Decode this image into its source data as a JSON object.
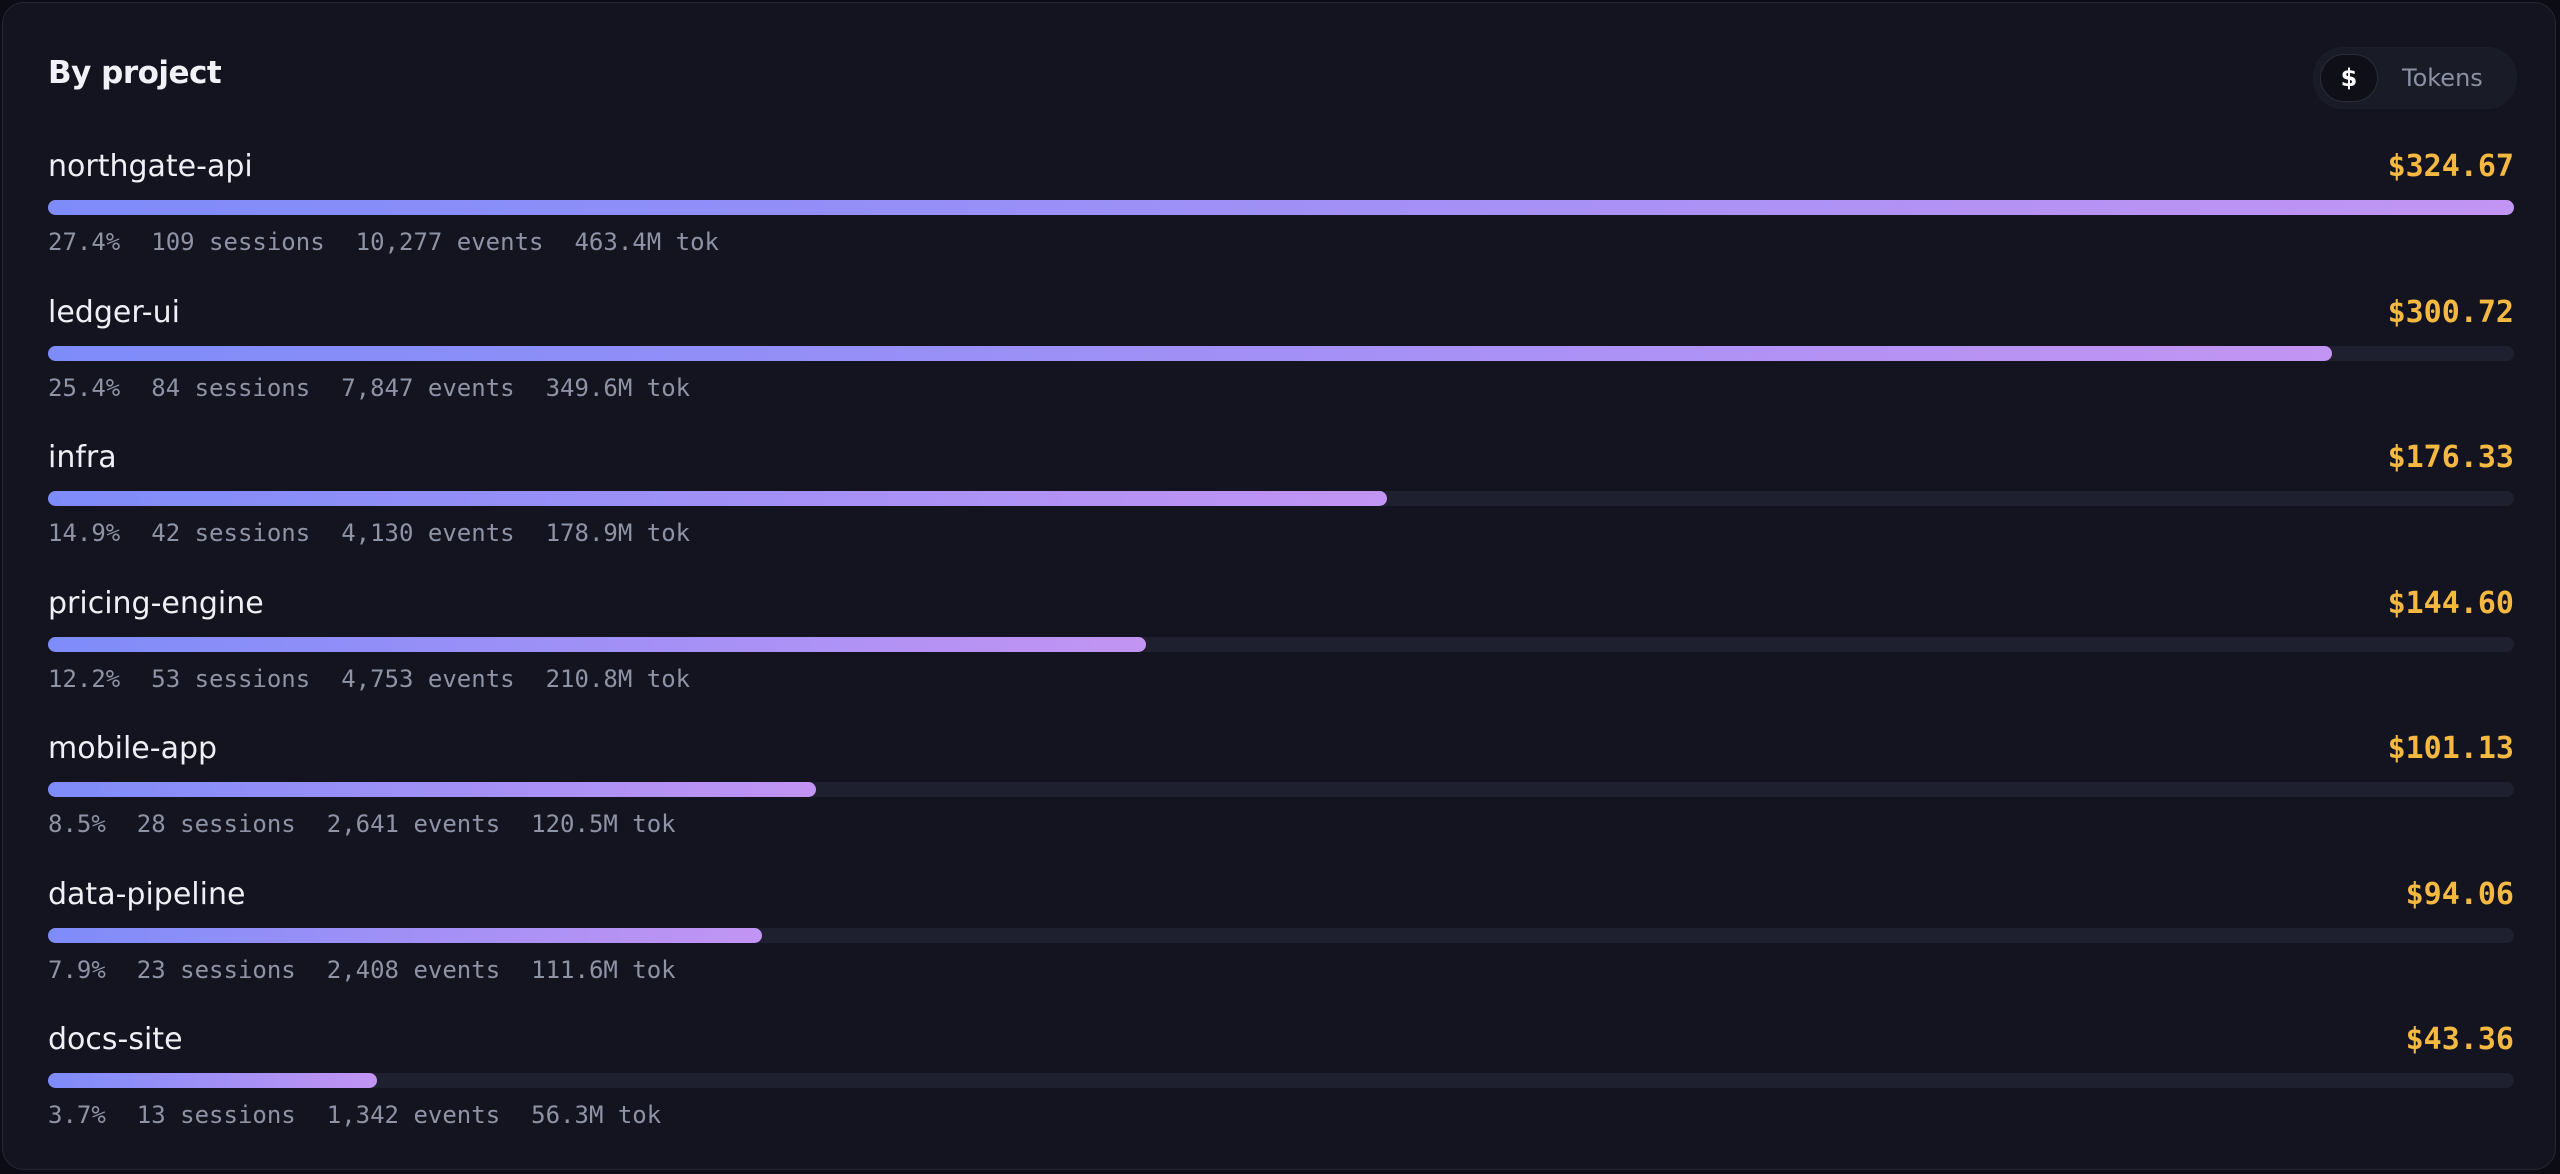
{
  "header": {
    "title": "By project",
    "toggle": {
      "active": "$",
      "inactive": "Tokens"
    }
  },
  "projects": [
    {
      "name": "northgate-api",
      "cost": 324.67,
      "cost_label": "$324.67",
      "stats": [
        "27.4%",
        "109 sessions",
        "10,277 events",
        "463.4M tok"
      ]
    },
    {
      "name": "ledger-ui",
      "cost": 300.72,
      "cost_label": "$300.72",
      "stats": [
        "25.4%",
        "84 sessions",
        "7,847 events",
        "349.6M tok"
      ]
    },
    {
      "name": "infra",
      "cost": 176.33,
      "cost_label": "$176.33",
      "stats": [
        "14.9%",
        "42 sessions",
        "4,130 events",
        "178.9M tok"
      ]
    },
    {
      "name": "pricing-engine",
      "cost": 144.6,
      "cost_label": "$144.60",
      "stats": [
        "12.2%",
        "53 sessions",
        "4,753 events",
        "210.8M tok"
      ]
    },
    {
      "name": "mobile-app",
      "cost": 101.13,
      "cost_label": "$101.13",
      "stats": [
        "8.5%",
        "28 sessions",
        "2,641 events",
        "120.5M tok"
      ]
    },
    {
      "name": "data-pipeline",
      "cost": 94.06,
      "cost_label": "$94.06",
      "stats": [
        "7.9%",
        "23 sessions",
        "2,408 events",
        "111.6M tok"
      ]
    },
    {
      "name": "docs-site",
      "cost": 43.36,
      "cost_label": "$43.36",
      "stats": [
        "3.7%",
        "13 sessions",
        "1,342 events",
        "56.3M tok"
      ]
    }
  ]
}
